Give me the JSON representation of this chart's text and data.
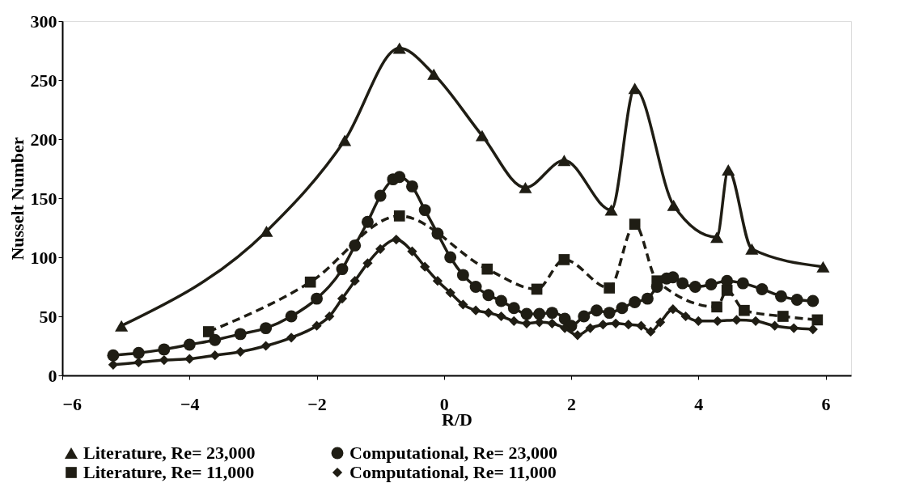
{
  "chart_data": {
    "type": "line",
    "xlabel": "R/D",
    "ylabel": "Nusselt Number",
    "xlim": [
      -6,
      6.4
    ],
    "xticks": [
      -6,
      -4,
      -2,
      0,
      2,
      4,
      6
    ],
    "ylim": [
      0,
      300
    ],
    "yticks": [
      0,
      50,
      100,
      150,
      200,
      250,
      300
    ],
    "grid": false,
    "legend": "bottom",
    "series": [
      {
        "name": "Literature, Re= 23,000",
        "color": "#1f1d14",
        "marker": "triangle",
        "line_style": "solid",
        "x": [
          -5.07,
          -2.79,
          -1.56,
          -0.7,
          -0.16,
          0.6,
          1.28,
          1.89,
          2.63,
          3.0,
          3.61,
          4.29,
          4.47,
          4.84,
          5.96
        ],
        "values": [
          42,
          122,
          199,
          277,
          255,
          203,
          159,
          182,
          140,
          243,
          144,
          117,
          174,
          107,
          92
        ]
      },
      {
        "name": "Computational, Re= 23,000",
        "color": "#1f1d14",
        "marker": "circle",
        "line_style": "solid",
        "x": [
          -5.2,
          -4.8,
          -4.4,
          -4.0,
          -3.6,
          -3.2,
          -2.8,
          -2.4,
          -2.0,
          -1.6,
          -1.4,
          -1.2,
          -1.0,
          -0.8,
          -0.7,
          -0.5,
          -0.3,
          -0.1,
          0.1,
          0.3,
          0.5,
          0.7,
          0.9,
          1.1,
          1.3,
          1.5,
          1.7,
          1.9,
          2.0,
          2.2,
          2.4,
          2.6,
          2.8,
          3.0,
          3.2,
          3.35,
          3.5,
          3.6,
          3.75,
          3.95,
          4.2,
          4.45,
          4.7,
          5.0,
          5.3,
          5.55,
          5.8
        ],
        "values": [
          17,
          19,
          22,
          26,
          30,
          35,
          40,
          50,
          65,
          90,
          110,
          130,
          152,
          166,
          168,
          160,
          140,
          120,
          100,
          85,
          75,
          68,
          63,
          57,
          52,
          52,
          53,
          48,
          42,
          50,
          55,
          53,
          57,
          62,
          65,
          75,
          82,
          83,
          78,
          75,
          77,
          80,
          78,
          73,
          67,
          64,
          63
        ]
      },
      {
        "name": "Literature, Re= 11,000",
        "color": "#1f1d14",
        "marker": "square",
        "line_style": "dashed",
        "x": [
          -3.7,
          -2.1,
          -0.7,
          0.68,
          1.46,
          1.89,
          2.6,
          3.0,
          3.35,
          4.29,
          4.45,
          4.72,
          5.33,
          5.87
        ],
        "values": [
          37,
          79,
          135,
          90,
          73,
          98,
          74,
          128,
          80,
          58,
          72,
          55,
          50,
          47
        ]
      },
      {
        "name": "Computational, Re= 11,000",
        "color": "#1f1d14",
        "marker": "diamond",
        "line_style": "solid",
        "x": [
          -5.2,
          -4.8,
          -4.4,
          -4.0,
          -3.6,
          -3.2,
          -2.8,
          -2.4,
          -2.0,
          -1.8,
          -1.6,
          -1.4,
          -1.2,
          -1.0,
          -0.75,
          -0.5,
          -0.3,
          -0.1,
          0.1,
          0.3,
          0.5,
          0.7,
          0.9,
          1.1,
          1.3,
          1.5,
          1.7,
          1.9,
          2.1,
          2.3,
          2.5,
          2.7,
          2.9,
          3.1,
          3.25,
          3.4,
          3.6,
          3.8,
          4.0,
          4.3,
          4.6,
          4.9,
          5.2,
          5.5,
          5.8
        ],
        "values": [
          9,
          11,
          13,
          14,
          17,
          20,
          25,
          32,
          42,
          50,
          65,
          80,
          95,
          107,
          115,
          105,
          92,
          80,
          70,
          60,
          55,
          53,
          50,
          46,
          44,
          45,
          44,
          40,
          34,
          40,
          43,
          44,
          43,
          42,
          37,
          45,
          56,
          50,
          46,
          46,
          47,
          46,
          42,
          40,
          39
        ]
      }
    ]
  }
}
